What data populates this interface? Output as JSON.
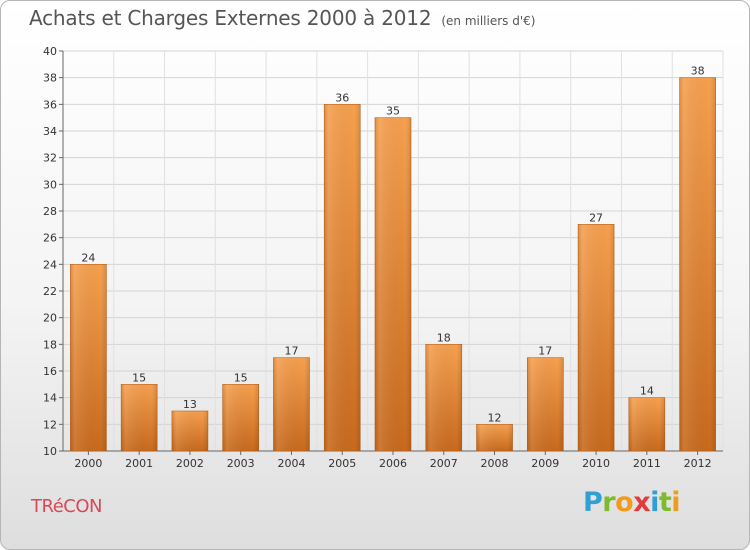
{
  "chart_data": {
    "type": "bar",
    "title": "Achats et Charges Externes 2000 à 2012",
    "subtitle": "(en milliers d'€)",
    "categories": [
      "2000",
      "2001",
      "2002",
      "2003",
      "2004",
      "2005",
      "2006",
      "2007",
      "2008",
      "2009",
      "2010",
      "2011",
      "2012"
    ],
    "values": [
      24,
      15,
      13,
      15,
      17,
      36,
      35,
      18,
      12,
      17,
      27,
      14,
      38
    ],
    "ylim": [
      10,
      40
    ],
    "yticks": [
      10,
      12,
      14,
      16,
      18,
      20,
      22,
      24,
      26,
      28,
      30,
      32,
      34,
      36,
      38,
      40
    ],
    "grid": true,
    "bar_color_top": "#f6a04f",
    "bar_color_bottom": "#c86a1e"
  },
  "footer": {
    "commune": "TRéCON",
    "brand_letters": [
      {
        "ch": "P",
        "color": "#2f9fd6"
      },
      {
        "ch": "r",
        "color": "#7cba2e"
      },
      {
        "ch": "o",
        "color": "#f29a1b"
      },
      {
        "ch": "x",
        "color": "#e23b3b"
      },
      {
        "ch": "i",
        "color": "#2f9fd6"
      },
      {
        "ch": "t",
        "color": "#7cba2e"
      },
      {
        "ch": "i",
        "color": "#f29a1b"
      }
    ]
  }
}
